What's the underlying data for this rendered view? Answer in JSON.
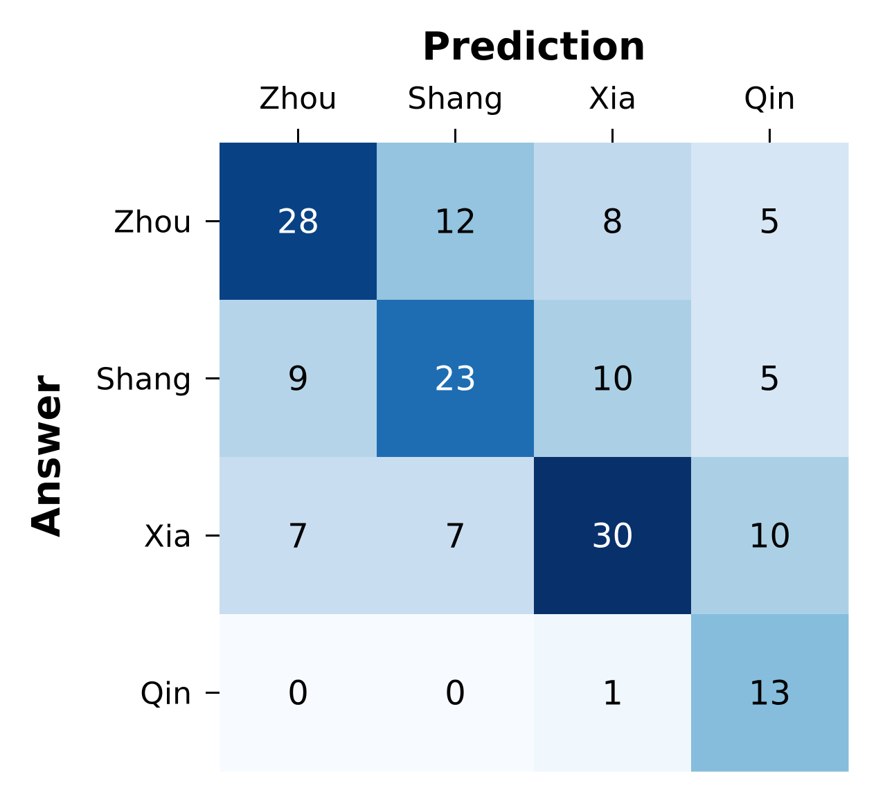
{
  "chart_data": {
    "type": "heatmap",
    "title": "",
    "xlabel": "Prediction",
    "ylabel": "Answer",
    "x_categories": [
      "Zhou",
      "Shang",
      "Xia",
      "Qin"
    ],
    "y_categories": [
      "Zhou",
      "Shang",
      "Xia",
      "Qin"
    ],
    "values": [
      [
        28,
        12,
        8,
        5
      ],
      [
        9,
        23,
        10,
        5
      ],
      [
        7,
        7,
        30,
        10
      ],
      [
        0,
        0,
        1,
        13
      ]
    ],
    "colormap": "Blues",
    "value_range": [
      0,
      30
    ],
    "x_axis_position": "top",
    "grid": false,
    "legend": "none"
  }
}
